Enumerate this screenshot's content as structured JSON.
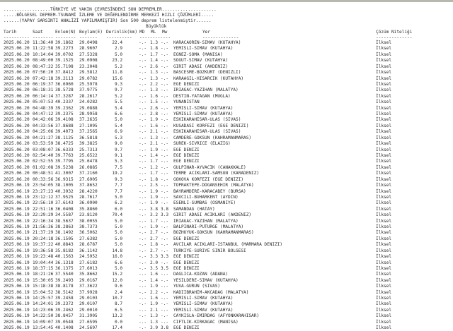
{
  "header": {
    "line1": "..................TÜRKİYE VE YAKIN ÇEVRESİNDEKİ SON DEPREMLER.....................",
    "line2": ".....BÖLGESEL DEPREM-TSUNAMİ İZLEME VE DEĞERLENDİRME MERKEZİ HIZLI ÇÖZÜMLERİ.....",
    "line3": "......(YAPAY SARSINTI ANALİZİ YAPILMAMIŞTIR) Son 500 deprem listelenmiştir......",
    "magnitude_group": "Büyüklük"
  },
  "columns": {
    "date": "Tarih",
    "time": "Saat",
    "lat": "Enlem(N)",
    "lon": "Boylam(E)",
    "depth": "Derinlik(km)",
    "md": "MD",
    "ml": "ML",
    "mw": "Mw",
    "place": "Yer",
    "solution": "Çözüm Niteliği"
  },
  "dashes": {
    "date": "----------",
    "time": "--------",
    "lat": "--------",
    "lon": "-------",
    "depth": "----------",
    "mag": "------------",
    "place": "--------------",
    "solution": "--------------"
  },
  "rows": [
    [
      "2025.06.20",
      "11:36:40",
      "39.1862",
      "29.0498",
      "22.4",
      "-.-",
      "1.3",
      "-.-",
      "KARACAOREN-SIMAV (KUTAHYA)",
      "İlksel"
    ],
    [
      "2025.06.20",
      "11:22:58",
      "39.2273",
      "28.9607",
      "2.9",
      "-.-",
      "1.8",
      "-.-",
      "YEMISLI-SIMAV (KUTAHYA)",
      "İlksel"
    ],
    [
      "2025.06.20",
      "10:14:04",
      "39.0702",
      "27.5328",
      "5.0",
      "-.-",
      "1.7",
      "-.-",
      "EGNEZ-SOMA (MANISA)",
      "İlksel"
    ],
    [
      "2025.06.20",
      "08:49:00",
      "39.1525",
      "29.0908",
      "23.2",
      "-.-",
      "1.4",
      "-.-",
      "SOGUT-SIMAV (KUTAHYA)",
      "İlksel"
    ],
    [
      "2025.06.20",
      "08:47:22",
      "35.7198",
      "23.2048",
      "5.2",
      "-.-",
      "2.6",
      "-.-",
      "GIRIT ADASI (AKDENIZ)",
      "İlksel"
    ],
    [
      "2025.06.20",
      "07:56:20",
      "37.8412",
      "29.5812",
      "11.8",
      "-.-",
      "1.3",
      "-.-",
      "BASCESME-BOZKURT (DENIZLI)",
      "İlksel"
    ],
    [
      "2025.06.20",
      "07:42:18",
      "39.2113",
      "29.0782",
      "15.6",
      "-.-",
      "1.3",
      "-.-",
      "KARAAGIL-HISARCIK (KUTAHYA)",
      "İlksel"
    ],
    [
      "2025.06.20",
      "06:19:37",
      "36.6960",
      "25.5978",
      "9.3",
      "-.-",
      "2.2",
      "-.-",
      "EGE DENIZI",
      "İlksel"
    ],
    [
      "2025.06.20",
      "06:18:31",
      "38.5728",
      "37.9775",
      "9.7",
      "-.-",
      "1.3",
      "-.-",
      "IRIAGAC-YAZIHAN (MALATYA)",
      "İlksel"
    ],
    [
      "2025.06.20",
      "06:14:14",
      "37.3287",
      "28.2617",
      "5.2",
      "-.-",
      "1.6",
      "-.-",
      "DESTIN-YATAGAN (MUGLA)",
      "İlksel"
    ],
    [
      "2025.06.20",
      "05:07:53",
      "40.2337",
      "24.0282",
      "5.5",
      "-.-",
      "1.5",
      "-.-",
      "YUNANISTAN",
      "İlksel"
    ],
    [
      "2025.06.20",
      "04:48:39",
      "39.2362",
      "29.0888",
      "5.4",
      "-.-",
      "2.6",
      "-.-",
      "YEMISLI-SIMAV (KUTAHYA)",
      "İlksel"
    ],
    [
      "2025.06.20",
      "04:47:12",
      "39.2375",
      "28.9958",
      "6.6",
      "-.-",
      "2.8",
      "-.-",
      "YEMISLI-SIMAV (KUTAHYA)",
      "İlksel"
    ],
    [
      "2025.06.20",
      "04:42:06",
      "39.4108",
      "37.2635",
      "5.0",
      "-.-",
      "1.9",
      "-.-",
      "ESKIKARAHISAR-ULAS (SIVAS)",
      "İlksel"
    ],
    [
      "2025.06.20",
      "04:33:56",
      "37.8688",
      "27.1095",
      "5.4",
      "-.-",
      "1.6",
      "-.-",
      "KUSADASI KORFEZI (EGE DENIZI)",
      "İlksel"
    ],
    [
      "2025.06.20",
      "04:25:06",
      "39.4073",
      "37.2565",
      "6.9",
      "-.-",
      "2.1",
      "-.-",
      "ESKIKARAHISAR-ULAS (SIVAS)",
      "İlksel"
    ],
    [
      "2025.06.20",
      "04:21:27",
      "38.1125",
      "36.5818",
      "5.3",
      "-.-",
      "1.3",
      "-.-",
      "CAMDERE-GOKSUN (KAHRAMANMARAS)",
      "İlksel"
    ],
    [
      "2025.06.20",
      "03:53:59",
      "38.4725",
      "39.3825",
      "9.0",
      "-.-",
      "2.1",
      "-.-",
      "SUREK-SIVRICE (ELAZIG)",
      "İlksel"
    ],
    [
      "2025.06.20",
      "03:08:07",
      "36.6333",
      "25.7313",
      "9.7",
      "-.-",
      "1.9",
      "-.-",
      "EGE DENIZI",
      "İlksel"
    ],
    [
      "2025.06.20",
      "02:54:40",
      "39.7763",
      "25.6522",
      "9.1",
      "-.-",
      "1.4",
      "-.-",
      "EGE DENIZI",
      "İlksel"
    ],
    [
      "2025.06.20",
      "02:52:55",
      "39.7795",
      "25.6478",
      "5.3",
      "-.-",
      "1.7",
      "-.-",
      "EGE DENIZI",
      "İlksel"
    ],
    [
      "2025.06.20",
      "01:02:08",
      "39.5238",
      "26.0885",
      "7.5",
      "-.-",
      "1.2",
      "-.-",
      "GULPINAR-AYVACIK (CANAKKALE)",
      "İlksel"
    ],
    [
      "2025.06.20",
      "00:48:51",
      "41.3007",
      "37.2160",
      "19.2",
      "-.-",
      "1.7",
      "-.-",
      "TERME ACIKLARI-SAMSUN (KARADENIZ)",
      "İlksel"
    ],
    [
      "2025.06.20",
      "00:33:56",
      "36.9315",
      "27.6905",
      "9.3",
      "-.-",
      "1.8",
      "-.-",
      "GOKOVA KORFEZI (EGE DENIZI)",
      "İlksel"
    ],
    [
      "2025.06.19",
      "23:54:05",
      "38.1005",
      "37.8652",
      "7.7",
      "-.-",
      "2.5",
      "-.-",
      "TOPRAKTEPE-DOGANSEHIR (MALATYA)",
      "İlksel"
    ],
    [
      "2025.06.19",
      "23:27:23",
      "40.3932",
      "28.4220",
      "7.7",
      "-.-",
      "1.9",
      "-.-",
      "BAYRAMDERE-KARACABEY (BURSA)",
      "İlksel"
    ],
    [
      "2025.06.19",
      "23:12:12",
      "37.9525",
      "28.7617",
      "5.0",
      "-.-",
      "1.9",
      "-.-",
      "SAVCILI-BUHARKENT (AYDIN)",
      "İlksel"
    ],
    [
      "2025.06.19",
      "22:56:10",
      "37.6143",
      "36.0900",
      "6.2",
      "-.-",
      "1.9",
      "-.-",
      "ESENLI-SUMBAS (OSMANIYE)",
      "İlksel"
    ],
    [
      "2025.06.19",
      "22:51:16",
      "36.0408",
      "35.8860",
      "6.0",
      "-.-",
      "3.8",
      "3.8",
      "SAMANDAG (HATAY)",
      "İlksel"
    ],
    [
      "2025.06.19",
      "22:29:29",
      "34.5587",
      "23.8120",
      "70.4",
      "-.-",
      "3.2",
      "3.3",
      "GIRIT ADASI ACIKLARI (AKDENIZ)",
      "İlksel"
    ],
    [
      "2025.06.19",
      "22:16:34",
      "38.5637",
      "38.0055",
      "5.0",
      "-.-",
      "1.7",
      "-.-",
      "IRIAGAC-YAZIHAN (MALATYA)",
      "İlksel"
    ],
    [
      "2025.06.19",
      "21:56:36",
      "38.2863",
      "38.7373",
      "5.0",
      "-.-",
      "1.9",
      "-.-",
      "BALPINARI-PUTURGE (MALATYA)",
      "İlksel"
    ],
    [
      "2025.06.19",
      "21:37:29",
      "38.1492",
      "36.5062",
      "5.0",
      "-.-",
      "2.7",
      "-.-",
      "BOZHUYUK-GOKSUN (KAHRAMANMARAS)",
      "İlksel"
    ],
    [
      "2025.06.19",
      "20:24:18",
      "36.1505",
      "27.6382",
      "5.0",
      "-.-",
      "2.7",
      "-.-",
      "EGE DENIZI",
      "İlksel"
    ],
    [
      "2025.06.19",
      "19:37:22",
      "40.8843",
      "28.6787",
      "5.0",
      "-.-",
      "1.8",
      "-.-",
      "AVCILAR ACIKLARI-ISTANBUL (MARMARA DENIZI)",
      "İlksel"
    ],
    [
      "2025.06.19",
      "19:36:58",
      "35.8182",
      "36.1142",
      "14.8",
      "-.-",
      "2.7",
      "-.-",
      "TURKIYE-SURIYE SINIR BOLGESI",
      "İlksel"
    ],
    [
      "2025.06.19",
      "19:23:48",
      "40.1563",
      "24.5952",
      "16.0",
      "-.-",
      "3.3",
      "3.3",
      "EGE DENIZI",
      "İlksel"
    ],
    [
      "2025.06.19",
      "19:04:44",
      "36.1318",
      "27.6182",
      "6.6",
      "-.-",
      "2.0",
      "-.-",
      "EGE DENIZI",
      "İlksel"
    ],
    [
      "2025.06.19",
      "18:37:15",
      "36.1375",
      "27.6013",
      "5.0",
      "-.-",
      "3.5",
      "3.5",
      "EGE DENIZI",
      "İlksel"
    ],
    [
      "2025.06.19",
      "18:21:26",
      "37.5540",
      "35.8662",
      "15.2",
      "-.-",
      "1.6",
      "-.-",
      "DAGLICA-KOZAN (ADANA)",
      "İlksel"
    ],
    [
      "2025.06.19",
      "15:30:05",
      "39.2493",
      "29.0167",
      "12.0",
      "-.-",
      "1.4",
      "-.-",
      "YESILDERE-SIMAV (KUTAHYA)",
      "İlksel"
    ],
    [
      "2025.06.19",
      "15:18:38",
      "38.8178",
      "37.3622",
      "9.6",
      "-.-",
      "1.9",
      "-.-",
      "YUVA-GURUN (SIVAS)",
      "İlksel"
    ],
    [
      "2025.06.19",
      "15:04:52",
      "38.5142",
      "37.9928",
      "2.4",
      "-.-",
      "2.2",
      "-.-",
      "KADIIBRAHIM-AKCADAG (MALATYA)",
      "İlksel"
    ],
    [
      "2025.06.19",
      "14:25:57",
      "39.2458",
      "29.0103",
      "10.7",
      "-.-",
      "1.6",
      "-.-",
      "YEMISLI-SIMAV (KUTAHYA)",
      "İlksel"
    ],
    [
      "2025.06.19",
      "14:24:01",
      "39.2372",
      "29.0107",
      "8.7",
      "-.-",
      "1.9",
      "-.-",
      "YEMISLI-SIMAV (KUTAHYA)",
      "İlksel"
    ],
    [
      "2025.06.19",
      "14:23:06",
      "39.2462",
      "29.0010",
      "6.5",
      "-.-",
      "2.1",
      "-.-",
      "YEMISLI-SIMAV (KUTAHYA)",
      "İlksel"
    ],
    [
      "2025.06.19",
      "14:22:50",
      "38.8457",
      "31.3905",
      "13.2",
      "-.-",
      "1.3",
      "-.-",
      "CAYKISLA-EMIRDAG (AFYONKARAHISAR)",
      "İlksel"
    ],
    [
      "2025.06.19",
      "14:09:07",
      "39.0548",
      "27.6595",
      "0.0",
      "-.-",
      "1.3",
      "-.-",
      "CIFTLIK-KIRKAGAC (MANISA)",
      "İlksel"
    ],
    [
      "2025.06.19",
      "13:54:45",
      "40.1408",
      "24.5697",
      "17.4",
      "-.-",
      "3.9",
      "3.8",
      "EGE DENIZI",
      "İlksel"
    ]
  ]
}
